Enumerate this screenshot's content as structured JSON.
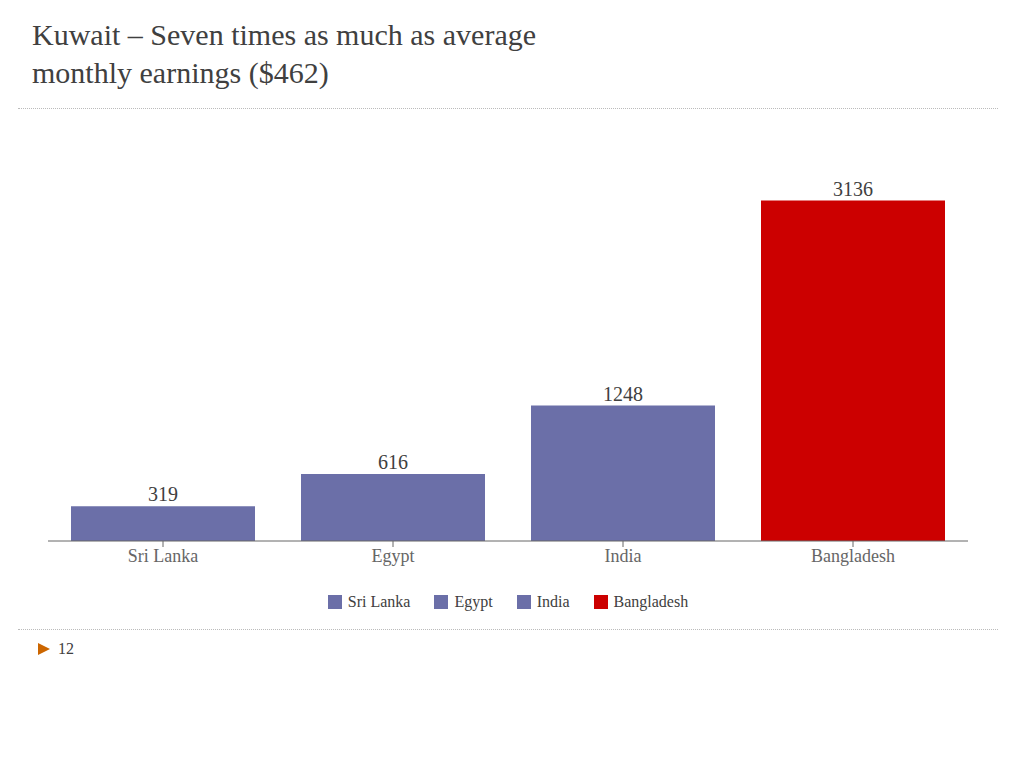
{
  "chart_data": {
    "type": "bar",
    "title": "Kuwait – Seven times as much as average",
    "subtitle": "monthly earnings ($462)",
    "categories": [
      "Sri Lanka",
      "Egypt",
      "India",
      "Bangladesh"
    ],
    "values": [
      319,
      616,
      1248,
      3136
    ],
    "colors": [
      "#6b6fa8",
      "#6b6fa8",
      "#6b6fa8",
      "#cc0000"
    ],
    "ylim": [
      0,
      3500
    ],
    "data_labels": true,
    "tick_labels": "x",
    "grid": false,
    "legend": "bottom",
    "annotations": [
      "12"
    ]
  }
}
